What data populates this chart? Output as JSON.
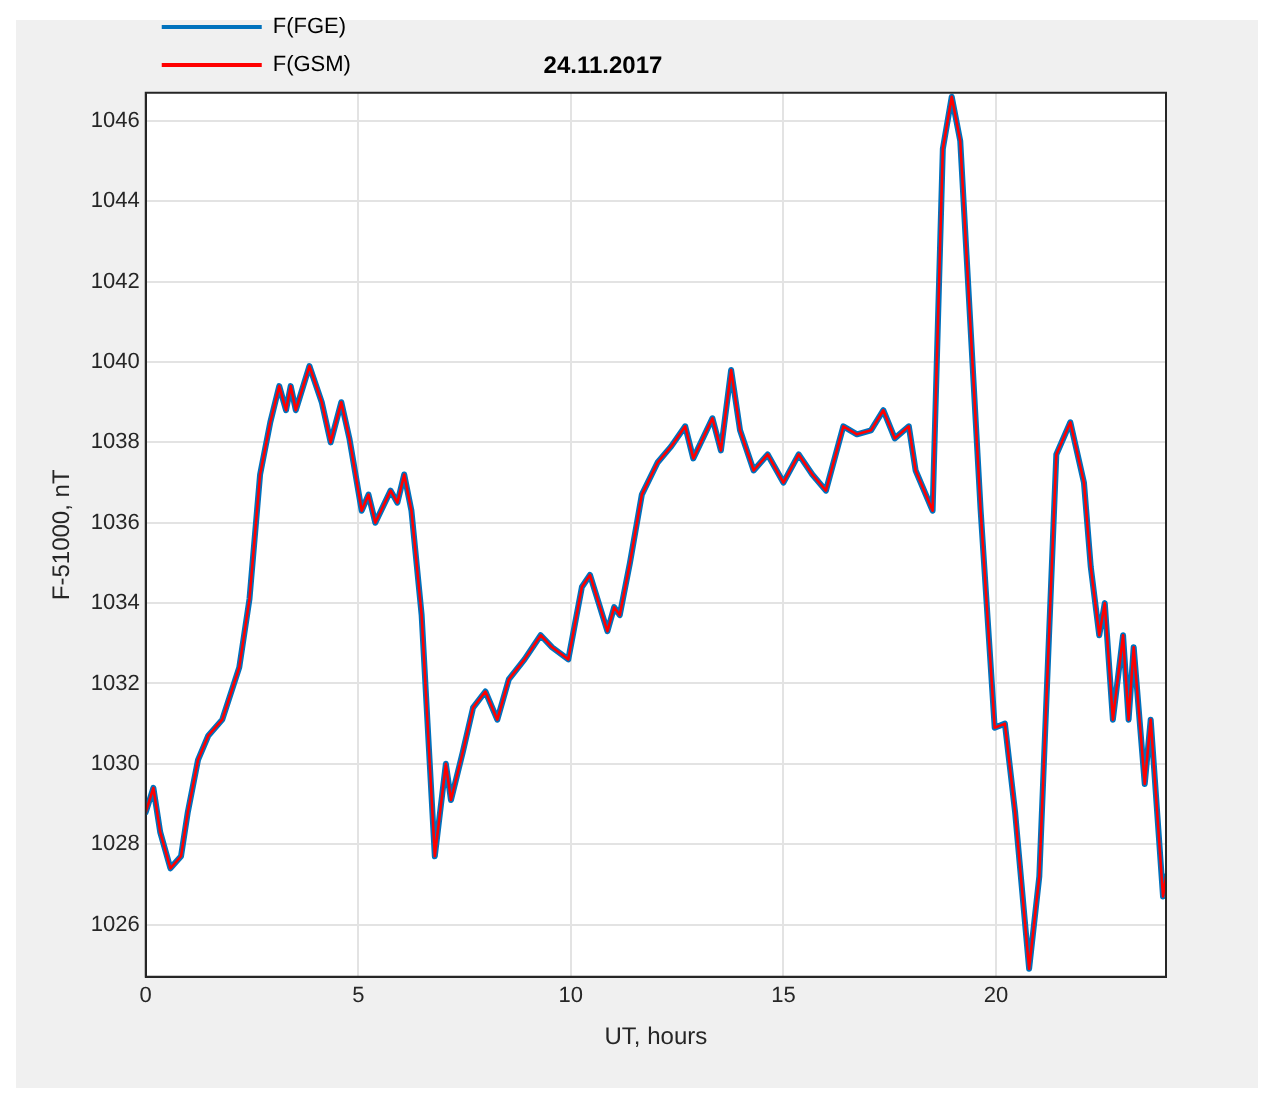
{
  "chart_data": {
    "type": "line",
    "title": "24.11.2017",
    "xlabel": "UT, hours",
    "ylabel": "F-51000, nT",
    "xlim": [
      0,
      24
    ],
    "xticks": [
      0,
      5,
      10,
      15,
      20
    ],
    "ylim": [
      1024.7,
      1046.7
    ],
    "yticks": [
      1026,
      1028,
      1030,
      1032,
      1034,
      1036,
      1038,
      1040,
      1042,
      1044,
      1046
    ],
    "grid": true,
    "legend": "top left",
    "marker": "none",
    "line_style": "solid",
    "x": [
      0,
      0.18,
      0.34,
      0.58,
      0.83,
      0.99,
      1.23,
      1.47,
      1.8,
      2.2,
      2.44,
      2.69,
      2.93,
      3.14,
      3.3,
      3.41,
      3.53,
      3.85,
      4.14,
      4.35,
      4.6,
      4.79,
      5.08,
      5.24,
      5.4,
      5.76,
      5.92,
      6.08,
      6.25,
      6.49,
      6.8,
      7.06,
      7.18,
      7.46,
      7.7,
      7.99,
      8.27,
      8.54,
      8.91,
      9.29,
      9.56,
      9.94,
      10.26,
      10.45,
      10.86,
      11.02,
      11.15,
      11.39,
      11.67,
      12.04,
      12.36,
      12.69,
      12.88,
      13.33,
      13.53,
      13.77,
      13.98,
      14.3,
      14.63,
      15.0,
      15.36,
      15.68,
      16.0,
      16.41,
      16.73,
      17.06,
      17.35,
      17.62,
      17.95,
      18.11,
      18.51,
      18.75,
      18.96,
      19.16,
      19.64,
      19.97,
      20.21,
      20.45,
      20.78,
      21.02,
      21.42,
      21.75,
      22.07,
      22.23,
      22.43,
      22.56,
      22.75,
      22.99,
      23.12,
      23.24,
      23.5,
      23.64,
      23.93,
      24.0
    ],
    "series": [
      {
        "name": "F(FGE)",
        "color": "#0072bd",
        "values": [
          1028.8,
          1029.4,
          1028.3,
          1027.4,
          1027.7,
          1028.8,
          1030.1,
          1030.7,
          1031.1,
          1032.4,
          1034.1,
          1037.2,
          1038.5,
          1039.4,
          1038.8,
          1039.4,
          1038.8,
          1039.9,
          1039.0,
          1038.0,
          1039.0,
          1038.1,
          1036.3,
          1036.7,
          1036.0,
          1036.8,
          1036.5,
          1037.2,
          1036.3,
          1033.7,
          1027.7,
          1030.0,
          1029.1,
          1030.3,
          1031.4,
          1031.8,
          1031.1,
          1032.1,
          1032.6,
          1033.2,
          1032.9,
          1032.6,
          1034.4,
          1034.7,
          1033.3,
          1033.9,
          1033.7,
          1035.0,
          1036.7,
          1037.5,
          1037.9,
          1038.4,
          1037.6,
          1038.6,
          1037.8,
          1039.8,
          1038.3,
          1037.3,
          1037.7,
          1037.0,
          1037.7,
          1037.2,
          1036.8,
          1038.4,
          1038.2,
          1038.3,
          1038.8,
          1038.1,
          1038.4,
          1037.3,
          1036.3,
          1045.3,
          1046.6,
          1045.5,
          1036.3,
          1030.9,
          1031.0,
          1028.8,
          1024.9,
          1027.2,
          1037.7,
          1038.5,
          1037.0,
          1034.9,
          1033.2,
          1034.0,
          1031.1,
          1033.2,
          1031.1,
          1032.9,
          1029.5,
          1031.1,
          1026.7,
          1027.2
        ]
      },
      {
        "name": "F(GSM)",
        "color": "#ff0000",
        "values": [
          1028.8,
          1029.4,
          1028.3,
          1027.4,
          1027.7,
          1028.8,
          1030.1,
          1030.7,
          1031.1,
          1032.4,
          1034.1,
          1037.2,
          1038.5,
          1039.4,
          1038.8,
          1039.4,
          1038.8,
          1039.9,
          1039.0,
          1038.0,
          1039.0,
          1038.1,
          1036.3,
          1036.7,
          1036.0,
          1036.8,
          1036.5,
          1037.2,
          1036.3,
          1033.7,
          1027.7,
          1030.0,
          1029.1,
          1030.3,
          1031.4,
          1031.8,
          1031.1,
          1032.1,
          1032.6,
          1033.2,
          1032.9,
          1032.6,
          1034.4,
          1034.7,
          1033.3,
          1033.9,
          1033.7,
          1035.0,
          1036.7,
          1037.5,
          1037.9,
          1038.4,
          1037.6,
          1038.6,
          1037.8,
          1039.8,
          1038.3,
          1037.3,
          1037.7,
          1037.0,
          1037.7,
          1037.2,
          1036.8,
          1038.4,
          1038.2,
          1038.3,
          1038.8,
          1038.1,
          1038.4,
          1037.3,
          1036.3,
          1045.3,
          1046.6,
          1045.5,
          1036.3,
          1030.9,
          1031.0,
          1028.8,
          1024.9,
          1027.2,
          1037.7,
          1038.5,
          1037.0,
          1034.9,
          1033.2,
          1034.0,
          1031.1,
          1033.2,
          1031.1,
          1032.9,
          1029.5,
          1031.1,
          1026.7,
          1027.2
        ]
      }
    ]
  }
}
